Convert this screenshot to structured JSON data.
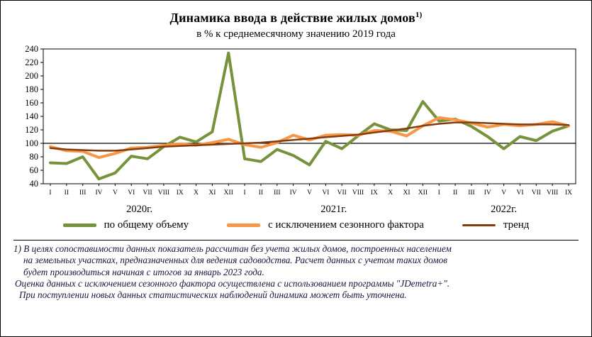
{
  "title": {
    "text": "Динамика ввода в действие жилых домов",
    "superscript": "1)"
  },
  "subtitle": "в % к среднемесячному значению 2019 года",
  "legend": [
    {
      "label": "по общему объему",
      "color": "#76923C",
      "sample_height": 5
    },
    {
      "label": "с исключением  сезонного фактора",
      "color": "#F79646",
      "sample_height": 5
    },
    {
      "label": "тренд",
      "color": "#843C0C",
      "sample_height": 3
    }
  ],
  "footnotes": [
    {
      "text": "1) В целях сопоставимости данных показатель рассчитан без учета жилых домов, построенных населением",
      "indent": 0
    },
    {
      "text": "на земельных участках, предназначенных для ведения садоводства. Расчет данных с учетом таких домов",
      "indent": 14
    },
    {
      "text": "будет производиться начиная с итогов за январь 2023 года.",
      "indent": 14
    },
    {
      "text": "Оценка данных с исключением сезонного фактора осуществлена с использованием программы \"JDemetra+\".",
      "indent": 2
    },
    {
      "text": "При поступлении новых данных статистических наблюдений динамика может быть уточнена.",
      "indent": 8
    }
  ],
  "chart_data": {
    "type": "line",
    "x_labels": [
      "I",
      "II",
      "III",
      "IV",
      "V",
      "VI",
      "VII",
      "VIII",
      "IX",
      "X",
      "XI",
      "XII",
      "I",
      "II",
      "III",
      "IV",
      "V",
      "VI",
      "VII",
      "VIII",
      "IX",
      "X",
      "XI",
      "XII",
      "I",
      "II",
      "III",
      "IV",
      "V",
      "VI",
      "VII",
      "VIII",
      "IX"
    ],
    "year_groups": [
      {
        "label": "2020г.",
        "count": 12
      },
      {
        "label": "2021г.",
        "count": 12
      },
      {
        "label": "2022г.",
        "count": 9
      }
    ],
    "ylim": [
      40,
      240
    ],
    "ytick_step": 20,
    "reference_line": 100,
    "grid": false,
    "legend_position": "bottom",
    "series": [
      {
        "name": "по общему объему",
        "color": "#76923C",
        "stroke_width": 4,
        "values": [
          71,
          70,
          80,
          47,
          56,
          81,
          77,
          95,
          109,
          102,
          117,
          234,
          77,
          73,
          91,
          82,
          68,
          103,
          92,
          111,
          129,
          120,
          119,
          162,
          133,
          136,
          125,
          110,
          92,
          110,
          104,
          118,
          126
        ]
      },
      {
        "name": "с исключением сезонного фактора",
        "color": "#F79646",
        "stroke_width": 4,
        "values": [
          95,
          89,
          88,
          79,
          85,
          93,
          94,
          97,
          99,
          97,
          101,
          106,
          98,
          94,
          101,
          112,
          105,
          112,
          113,
          112,
          119,
          118,
          111,
          126,
          138,
          135,
          130,
          124,
          128,
          126,
          128,
          132,
          126
        ]
      },
      {
        "name": "тренд",
        "color": "#843C0C",
        "stroke_width": 2.5,
        "values": [
          93,
          91,
          90,
          89,
          89,
          91,
          93,
          95,
          96,
          97,
          98,
          99,
          100,
          101,
          103,
          105,
          107,
          109,
          111,
          113,
          116,
          119,
          122,
          126,
          129,
          131,
          131,
          130,
          129,
          128,
          128,
          128,
          127
        ]
      }
    ]
  }
}
